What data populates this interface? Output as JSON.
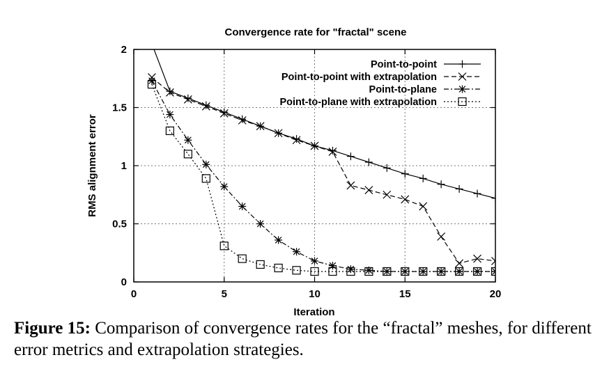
{
  "chart_data": {
    "type": "line",
    "title": "Convergence rate for \"fractal\" scene",
    "xlabel": "Iteration",
    "ylabel": "RMS alignment error",
    "xlim": [
      0,
      20
    ],
    "ylim": [
      0,
      2
    ],
    "xticks": [
      "0",
      "5",
      "10",
      "15",
      "20"
    ],
    "yticks": [
      "0",
      "0.5",
      "1",
      "1.5",
      "2"
    ],
    "grid": true,
    "legend_position": "top-right",
    "series": [
      {
        "name": "Point-to-point",
        "marker": "plus",
        "dash": "solid",
        "x": [
          1,
          2,
          3,
          4,
          5,
          6,
          7,
          8,
          9,
          10,
          11,
          12,
          13,
          14,
          15,
          16,
          17,
          18,
          19,
          20
        ],
        "y": [
          2.05,
          1.64,
          1.58,
          1.52,
          1.46,
          1.4,
          1.34,
          1.28,
          1.23,
          1.17,
          1.13,
          1.08,
          1.03,
          0.98,
          0.93,
          0.89,
          0.84,
          0.8,
          0.76,
          0.72
        ]
      },
      {
        "name": "Point-to-point with extrapolation",
        "marker": "cross",
        "dash": "dashed",
        "x": [
          1,
          2,
          3,
          4,
          5,
          6,
          7,
          8,
          9,
          10,
          11,
          12,
          13,
          14,
          15,
          16,
          17,
          18,
          19,
          20
        ],
        "y": [
          1.76,
          1.63,
          1.57,
          1.51,
          1.45,
          1.39,
          1.34,
          1.28,
          1.22,
          1.17,
          1.12,
          0.83,
          0.79,
          0.75,
          0.71,
          0.65,
          0.39,
          0.16,
          0.2,
          0.18
        ]
      },
      {
        "name": "Point-to-plane",
        "marker": "star",
        "dash": "dashdot",
        "x": [
          1,
          2,
          3,
          4,
          5,
          6,
          7,
          8,
          9,
          10,
          11,
          12,
          13,
          14,
          15,
          16,
          17,
          18,
          19,
          20
        ],
        "y": [
          1.73,
          1.44,
          1.22,
          1.01,
          0.82,
          0.65,
          0.5,
          0.36,
          0.26,
          0.18,
          0.14,
          0.11,
          0.1,
          0.09,
          0.09,
          0.09,
          0.09,
          0.09,
          0.09,
          0.09
        ]
      },
      {
        "name": "Point-to-plane with extrapolation",
        "marker": "square",
        "dash": "dotted",
        "x": [
          1,
          2,
          3,
          4,
          5,
          6,
          7,
          8,
          9,
          10,
          11,
          12,
          13,
          14,
          15,
          16,
          17,
          18,
          19,
          20
        ],
        "y": [
          1.7,
          1.3,
          1.1,
          0.89,
          0.31,
          0.2,
          0.15,
          0.12,
          0.1,
          0.09,
          0.09,
          0.09,
          0.09,
          0.09,
          0.09,
          0.09,
          0.09,
          0.09,
          0.09,
          0.09
        ]
      }
    ]
  },
  "caption": {
    "label": "Figure 15:",
    "text": " Comparison of convergence rates for the “fractal” meshes, for different error metrics and extrapolation strategies."
  }
}
